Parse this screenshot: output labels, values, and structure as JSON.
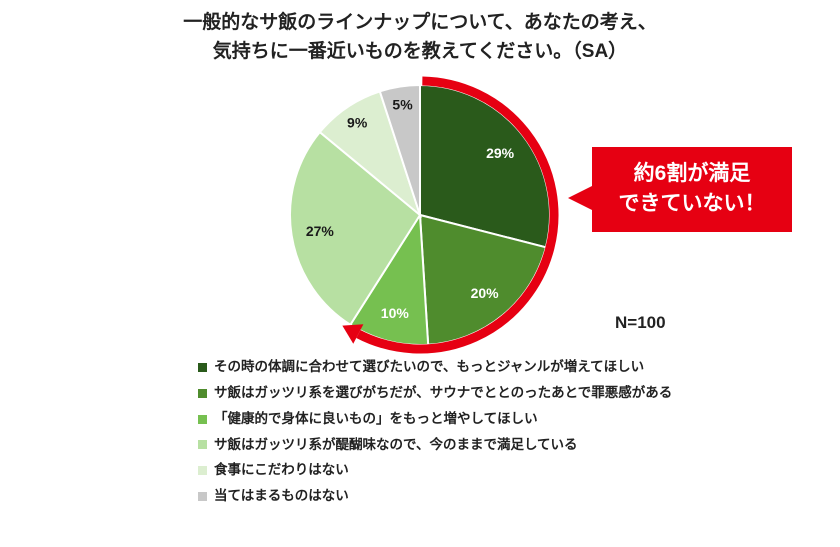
{
  "title": {
    "line1": "一般的なサ飯のラインナップについて、あなたの考え、",
    "line2": "気持ちに一番近いものを教えてください。（SA）"
  },
  "callout": {
    "line1": "約6割が満足",
    "line2": "できていない！",
    "bg_color": "#e60012",
    "text_color": "#ffffff"
  },
  "sample_size": "N=100",
  "chart_data": {
    "type": "pie",
    "title": "一般的なサ飯のラインナップについて、あなたの考え、気持ちに一番近いものを教えてください。（SA）",
    "start_angle_deg": 0,
    "direction": "clockwise",
    "n": 100,
    "slices": [
      {
        "label": "その時の体調に合わせて選びたいので、もっとジャンルが増えてほしい",
        "value": 29,
        "display": "29%",
        "color": "#2a5a1b",
        "label_color": "#ffffff"
      },
      {
        "label": "サ飯はガッツリ系を選びがちだが、サウナでととのったあとで罪悪感がある",
        "value": 20,
        "display": "20%",
        "color": "#4f8c2d",
        "label_color": "#ffffff"
      },
      {
        "label": "「健康的で身体に良いもの」をもっと増やしてほしい",
        "value": 10,
        "display": "10%",
        "color": "#76c050",
        "label_color": "#ffffff"
      },
      {
        "label": "サ飯はガッツリ系が醍醐味なので、今のままで満足している",
        "value": 27,
        "display": "27%",
        "color": "#b7e0a2",
        "label_color": "#1a1a1a"
      },
      {
        "label": "食事にこだわりはない",
        "value": 9,
        "display": "9%",
        "color": "#dceed0",
        "label_color": "#1a1a1a"
      },
      {
        "label": "当てはまるものはない",
        "value": 5,
        "display": "5%",
        "color": "#c8c8c8",
        "label_color": "#1a1a1a"
      }
    ],
    "highlight_arc": {
      "covers_percent": 59,
      "covers_slices": [
        "29%",
        "20%",
        "10%"
      ],
      "color": "#e60012"
    },
    "legend_position": "bottom"
  }
}
